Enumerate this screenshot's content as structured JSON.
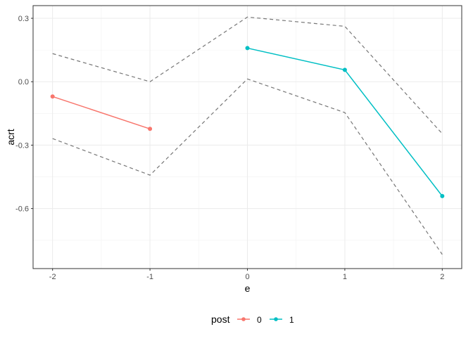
{
  "chart_data": {
    "type": "line",
    "xlabel": "e",
    "ylabel": "acrt",
    "xlim": [
      -2.2,
      2.2
    ],
    "ylim": [
      -0.884,
      0.36
    ],
    "x_ticks": [
      -2,
      -1,
      0,
      1,
      2
    ],
    "x_tick_labels": [
      "-2",
      "-1",
      "0",
      "1",
      "2"
    ],
    "y_ticks": [
      0.3,
      0.0,
      -0.3,
      -0.6
    ],
    "y_tick_labels": [
      "0.3",
      "0.0",
      "-0.3",
      "-0.6"
    ],
    "grid": true,
    "legend": {
      "title": "post",
      "placement": "bottom",
      "entries": [
        "0",
        "1"
      ]
    },
    "series": [
      {
        "name": "0",
        "color": "#F8766D",
        "x": [
          -2,
          -1
        ],
        "y": [
          -0.07,
          -0.223
        ]
      },
      {
        "name": "1",
        "color": "#00BFC4",
        "x": [
          0,
          1,
          2
        ],
        "y": [
          0.159,
          0.056,
          -0.541
        ]
      }
    ],
    "bands": {
      "color": "#777777",
      "style": "dashed",
      "x": [
        -2,
        -1,
        0,
        1,
        2
      ],
      "upper": [
        0.133,
        0.0,
        0.306,
        0.262,
        -0.246
      ],
      "lower": [
        -0.269,
        -0.442,
        0.013,
        -0.146,
        -0.817
      ]
    }
  }
}
